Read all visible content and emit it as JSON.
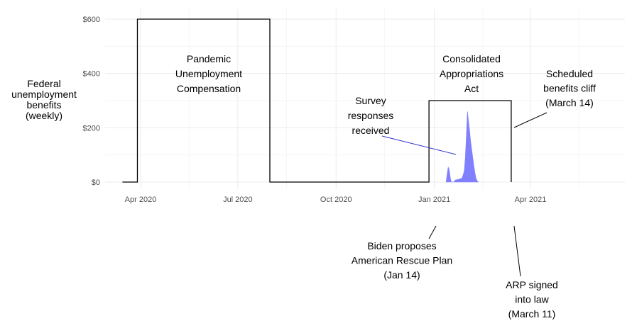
{
  "chart_data": {
    "type": "line",
    "title": "",
    "ylabel": [
      "Federal",
      "unemployment",
      "benefits",
      "(weekly)"
    ],
    "xlabel": "",
    "x_ticks": [
      {
        "date": "2020-04-01",
        "label": "Apr 2020"
      },
      {
        "date": "2020-07-01",
        "label": "Jul 2020"
      },
      {
        "date": "2020-10-01",
        "label": "Oct 2020"
      },
      {
        "date": "2021-01-01",
        "label": "Jan 2021"
      },
      {
        "date": "2021-04-01",
        "label": "Apr 2021"
      }
    ],
    "y_ticks": [
      {
        "value": 0,
        "label": "$0"
      },
      {
        "value": 200,
        "label": "$200"
      },
      {
        "value": 400,
        "label": "$400"
      },
      {
        "value": 600,
        "label": "$600"
      }
    ],
    "xlim": [
      "2020-03-01",
      "2021-06-01"
    ],
    "ylim": [
      0,
      600
    ],
    "grid": true,
    "benefits_series": {
      "name": "Federal unemployment benefits (weekly)",
      "color": "#000000",
      "points": [
        {
          "date": "2020-03-15",
          "value": 0
        },
        {
          "date": "2020-03-29",
          "value": 0
        },
        {
          "date": "2020-03-29",
          "value": 600
        },
        {
          "date": "2020-07-31",
          "value": 600
        },
        {
          "date": "2020-07-31",
          "value": 0
        },
        {
          "date": "2020-12-27",
          "value": 0
        },
        {
          "date": "2020-12-27",
          "value": 300
        },
        {
          "date": "2021-03-14",
          "value": 300
        },
        {
          "date": "2021-03-14",
          "value": 0
        }
      ]
    },
    "survey_series": {
      "name": "Survey responses received",
      "color": "#8080ff",
      "type": "area",
      "values": [
        {
          "date": "2021-01-12",
          "value": 0
        },
        {
          "date": "2021-01-13",
          "value": 30
        },
        {
          "date": "2021-01-14",
          "value": 55
        },
        {
          "date": "2021-01-15",
          "value": 45
        },
        {
          "date": "2021-01-16",
          "value": 15
        },
        {
          "date": "2021-01-17",
          "value": 0
        },
        {
          "date": "2021-01-19",
          "value": 0
        },
        {
          "date": "2021-01-21",
          "value": 8
        },
        {
          "date": "2021-01-24",
          "value": 10
        },
        {
          "date": "2021-01-27",
          "value": 15
        },
        {
          "date": "2021-01-29",
          "value": 40
        },
        {
          "date": "2021-01-30",
          "value": 90
        },
        {
          "date": "2021-01-31",
          "value": 170
        },
        {
          "date": "2021-02-01",
          "value": 260
        },
        {
          "date": "2021-02-02",
          "value": 225
        },
        {
          "date": "2021-02-03",
          "value": 190
        },
        {
          "date": "2021-02-04",
          "value": 150
        },
        {
          "date": "2021-02-05",
          "value": 120
        },
        {
          "date": "2021-02-06",
          "value": 90
        },
        {
          "date": "2021-02-07",
          "value": 60
        },
        {
          "date": "2021-02-08",
          "value": 35
        },
        {
          "date": "2021-02-09",
          "value": 15
        },
        {
          "date": "2021-02-10",
          "value": 5
        },
        {
          "date": "2021-02-11",
          "value": 0
        }
      ]
    },
    "annotations": [
      {
        "id": "puc",
        "lines": [
          "Pandemic",
          "Unemployment",
          "Compensation"
        ],
        "color": "#000000"
      },
      {
        "id": "caa",
        "lines": [
          "Consolidated",
          "Appropriations",
          "Act"
        ],
        "color": "#000000"
      },
      {
        "id": "survey",
        "lines": [
          "Survey",
          "responses",
          "received"
        ],
        "color": "#3333cc"
      },
      {
        "id": "cliff",
        "lines": [
          "Scheduled",
          "benefits cliff",
          "(March 14)"
        ],
        "color": "#333333"
      },
      {
        "id": "biden",
        "lines": [
          "Biden proposes",
          "American Rescue Plan",
          "(Jan 14)"
        ],
        "color": "#000000"
      },
      {
        "id": "arp",
        "lines": [
          "ARP signed",
          "into law",
          "(March 11)"
        ],
        "color": "#000000"
      }
    ]
  }
}
